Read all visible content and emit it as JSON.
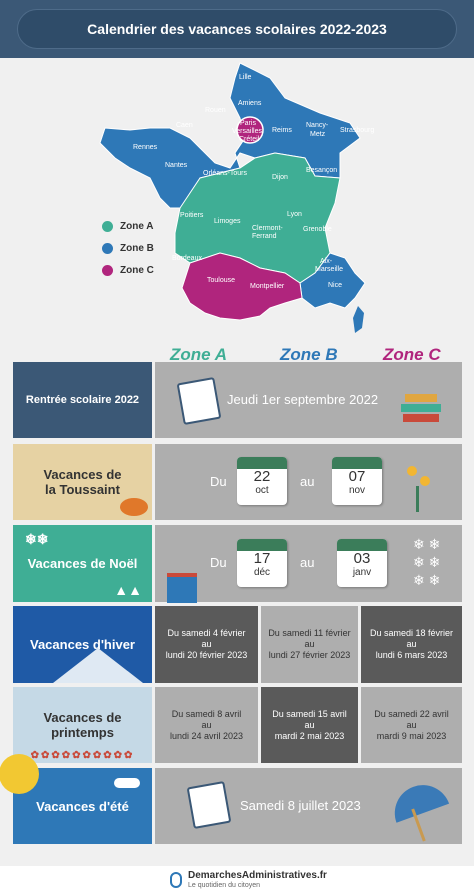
{
  "header": {
    "title": "Calendrier des vacances scolaires 2022-2023"
  },
  "legend": [
    {
      "label": "Zone A",
      "color": "#3fae95"
    },
    {
      "label": "Zone B",
      "color": "#2e78b7"
    },
    {
      "label": "Zone C",
      "color": "#b0257d"
    }
  ],
  "map": {
    "cities": {
      "lille": "Lille",
      "amiens": "Amiens",
      "rouen": "Rouen",
      "caen": "Caen",
      "paris": "Paris",
      "versailles": "Versailles",
      "creteil": "Créteil",
      "reims": "Reims",
      "nancy": "Nancy-",
      "metz": "Metz",
      "strasbourg": "Strasbourg",
      "rennes": "Rennes",
      "nantes": "Nantes",
      "orleans": "Orléans-Tours",
      "dijon": "Dijon",
      "besancon": "Besançon",
      "poitiers": "Poitiers",
      "limoges": "Limoges",
      "clermont": "Clermont-",
      "ferrand": "Ferrand",
      "lyon": "Lyon",
      "grenoble": "Grenoble",
      "bordeaux": "Bordeaux",
      "toulouse": "Toulouse",
      "montpellier": "Montpellier",
      "aix": "Aix-",
      "marseille": "Marseille",
      "nice": "Nice"
    }
  },
  "zones": {
    "a": "Zone A",
    "b": "Zone B",
    "c": "Zone C"
  },
  "rows": {
    "rentree": {
      "label": "Rentrée scolaire 2022",
      "text": "Jeudi 1er septembre 2022"
    },
    "toussaint": {
      "label1": "Vacances de",
      "label2": "la Toussaint",
      "du": "Du",
      "au": "au",
      "start_day": "22",
      "start_month": "oct",
      "end_day": "07",
      "end_month": "nov"
    },
    "noel": {
      "label": "Vacances de Noël",
      "du": "Du",
      "au": "au",
      "start_day": "17",
      "start_month": "déc",
      "end_day": "03",
      "end_month": "janv"
    },
    "hiver": {
      "label": "Vacances d'hiver",
      "a": [
        "Du samedi 4 février",
        "au",
        "lundi 20 février 2023"
      ],
      "b": [
        "Du samedi 11 février",
        "au",
        "lundi 27 février 2023"
      ],
      "c": [
        "Du samedi 18 février",
        "au",
        "lundi 6 mars 2023"
      ]
    },
    "printemps": {
      "label1": "Vacances de",
      "label2": "printemps",
      "a": [
        "Du samedi 8 avril",
        "au",
        "lundi 24 avril 2023"
      ],
      "b": [
        "Du samedi 15 avril",
        "au",
        "mardi 2 mai 2023"
      ],
      "c": [
        "Du samedi 22 avril",
        "au",
        "mardi 9 mai 2023"
      ]
    },
    "ete": {
      "label": "Vacances d'été",
      "text": "Samedi 8 juillet 2023"
    }
  },
  "footer": {
    "brand": "DemarchesAdministratives.fr",
    "tagline": "Le quotidien du citoyen"
  }
}
